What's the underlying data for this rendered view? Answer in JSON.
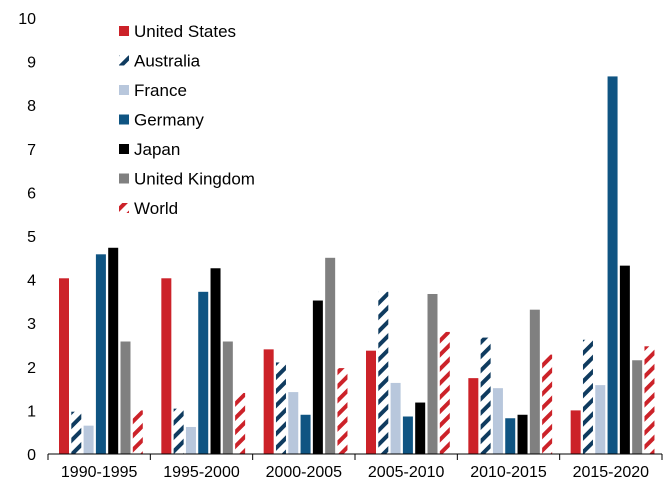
{
  "chart_data": {
    "type": "bar",
    "title": "",
    "xlabel": "",
    "ylabel": "",
    "ylim": [
      0,
      10
    ],
    "yticks": [
      0,
      1,
      2,
      3,
      4,
      5,
      6,
      7,
      8,
      9,
      10
    ],
    "grid": false,
    "legend_position": "top-left",
    "categories": [
      "1990-1995",
      "1995-2000",
      "2000-2005",
      "2005-2010",
      "2010-2015",
      "2015-2020"
    ],
    "series": [
      {
        "name": "United States",
        "color": "#cc2229",
        "pattern": "solid",
        "values": [
          4.03,
          4.03,
          2.4,
          2.37,
          1.74,
          1.0
        ]
      },
      {
        "name": "Australia",
        "color": "#0f3b5f",
        "pattern": "hatched",
        "values": [
          0.97,
          1.04,
          2.1,
          3.72,
          2.67,
          2.62
        ]
      },
      {
        "name": "France",
        "color": "#b8c7dc",
        "pattern": "solid",
        "values": [
          0.65,
          0.62,
          1.42,
          1.63,
          1.51,
          1.58
        ]
      },
      {
        "name": "Germany",
        "color": "#0f5482",
        "pattern": "solid",
        "values": [
          4.58,
          3.72,
          0.9,
          0.86,
          0.82,
          8.66
        ]
      },
      {
        "name": "Japan",
        "color": "#000000",
        "pattern": "solid",
        "values": [
          4.73,
          4.26,
          3.52,
          1.18,
          0.9,
          4.32
        ]
      },
      {
        "name": "United Kingdom",
        "color": "#808080",
        "pattern": "solid",
        "values": [
          2.58,
          2.58,
          4.5,
          3.67,
          3.31,
          2.15
        ]
      },
      {
        "name": "World",
        "color": "#cc2229",
        "pattern": "hatched",
        "values": [
          1.0,
          1.4,
          1.97,
          2.8,
          2.28,
          2.47
        ]
      }
    ]
  }
}
